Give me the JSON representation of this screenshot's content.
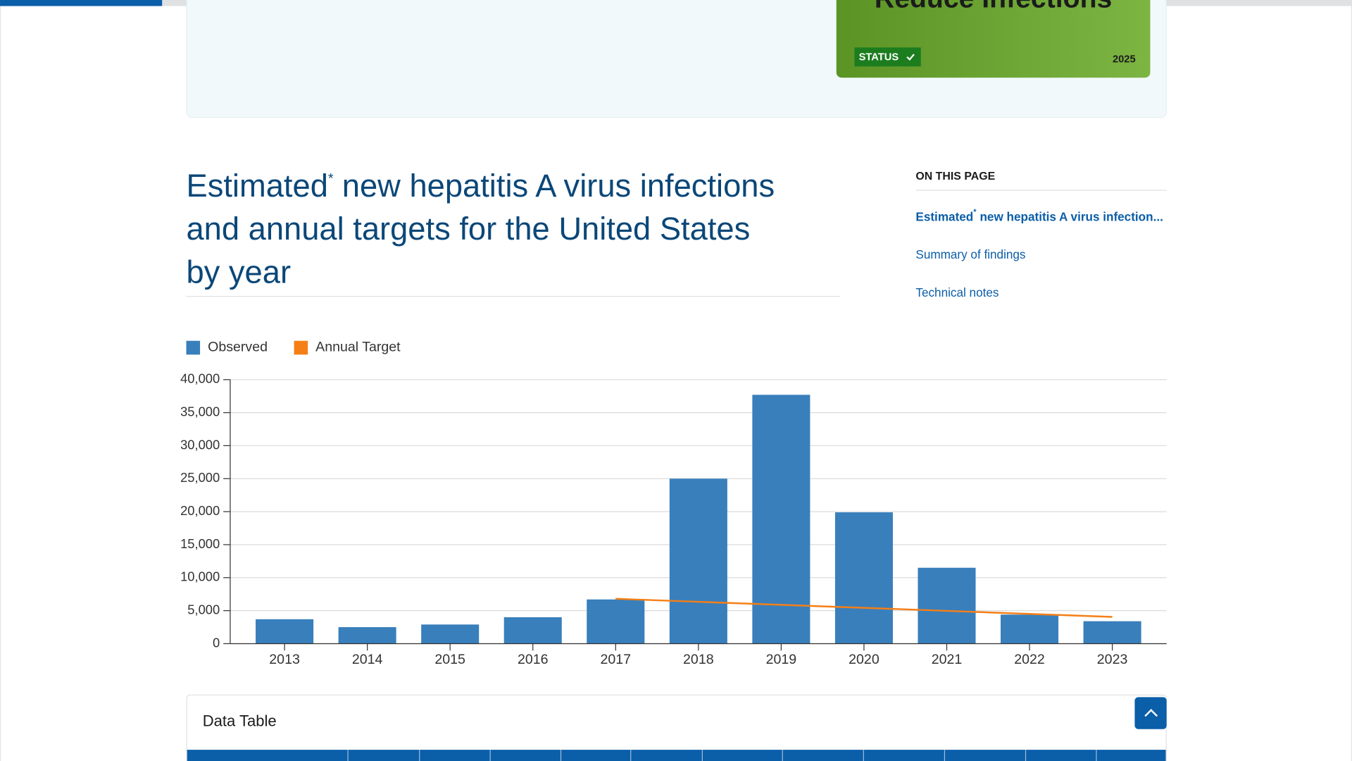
{
  "banner": {
    "title": "Reduce Infections",
    "status": "STATUS",
    "year": "2025"
  },
  "heading": {
    "lead": "Estimated",
    "marker": "*",
    "lines": [
      "new hepatitis A virus infections",
      "and annual targets for the United States",
      "by year"
    ]
  },
  "sidebar": {
    "title": "ON THIS PAGE",
    "links": [
      {
        "lead": "Estimated",
        "marker": "*",
        "rest": "new hepatitis A virus infection..."
      },
      {
        "text": "Summary of findings"
      },
      {
        "text": "Technical notes"
      }
    ]
  },
  "data_table": {
    "title": "Data Table"
  },
  "chart_data": {
    "type": "bar",
    "categories": [
      "2013",
      "2014",
      "2015",
      "2016",
      "2017",
      "2018",
      "2019",
      "2020",
      "2021",
      "2022",
      "2023"
    ],
    "series": [
      {
        "name": "Observed",
        "type": "bar",
        "color": "#387fbc",
        "values": [
          3700,
          2500,
          2900,
          4000,
          6700,
          25000,
          37700,
          19900,
          11500,
          4400,
          3400
        ]
      },
      {
        "name": "Annual Target",
        "type": "line",
        "color": "#f57f17",
        "values": [
          null,
          null,
          null,
          null,
          6800,
          6340,
          5880,
          5430,
          4970,
          4510,
          4050
        ]
      }
    ],
    "ylim": [
      0,
      40000
    ],
    "yticks": [
      0,
      {
        "value": 5000,
        "label": "5,000"
      },
      {
        "value": 10000,
        "label": "10,000"
      },
      {
        "value": 15000,
        "label": "15,000"
      },
      {
        "value": 20000,
        "label": "20,000"
      },
      {
        "value": 25000,
        "label": "25,000"
      },
      {
        "value": 30000,
        "label": "30,000"
      },
      {
        "value": 35000,
        "label": "35,000"
      },
      {
        "value": 40000,
        "label": "40,000"
      }
    ],
    "grid": true,
    "legend": "top-left"
  }
}
